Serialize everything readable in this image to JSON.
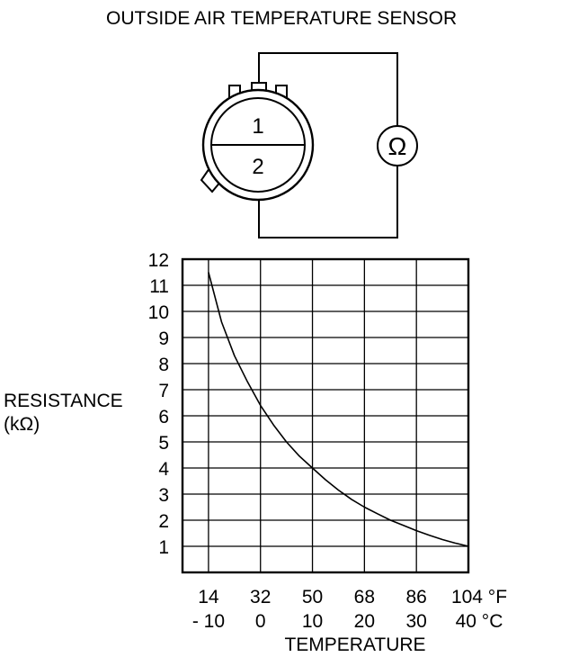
{
  "diagram": {
    "title": "OUTSIDE AIR TEMPERATURE SENSOR",
    "terminal_1": "1",
    "terminal_2": "2",
    "meter_symbol": "Ω"
  },
  "chart_data": {
    "type": "line",
    "title": "",
    "ylabel_line1": "RESISTANCE",
    "ylabel_line2": "(kΩ)",
    "xlabel": "TEMPERATURE",
    "xlim": [
      -15,
      40
    ],
    "ylim": [
      0,
      12
    ],
    "grid": true,
    "y_ticks": [
      "1",
      "2",
      "3",
      "4",
      "5",
      "6",
      "7",
      "8",
      "9",
      "10",
      "11",
      "12"
    ],
    "x_ticks_f": [
      "14",
      "32",
      "50",
      "68",
      "86",
      "104 °F"
    ],
    "x_ticks_c": [
      "- 10",
      "0",
      "10",
      "20",
      "30",
      "40 °C"
    ],
    "x_tick_values_c": [
      -10,
      0,
      10,
      20,
      30,
      40
    ],
    "series": [
      {
        "x": [
          -10,
          -7.5,
          -5,
          -2.5,
          0,
          2.5,
          5,
          7.5,
          10,
          12.5,
          15,
          17.5,
          20,
          22.5,
          25,
          27.5,
          30,
          32.5,
          35,
          37.5,
          40
        ],
        "y": [
          11.5,
          9.6,
          8.3,
          7.3,
          6.4,
          5.65,
          5.0,
          4.45,
          4.0,
          3.55,
          3.15,
          2.8,
          2.5,
          2.25,
          2.0,
          1.8,
          1.6,
          1.42,
          1.26,
          1.12,
          1.0
        ]
      }
    ]
  }
}
